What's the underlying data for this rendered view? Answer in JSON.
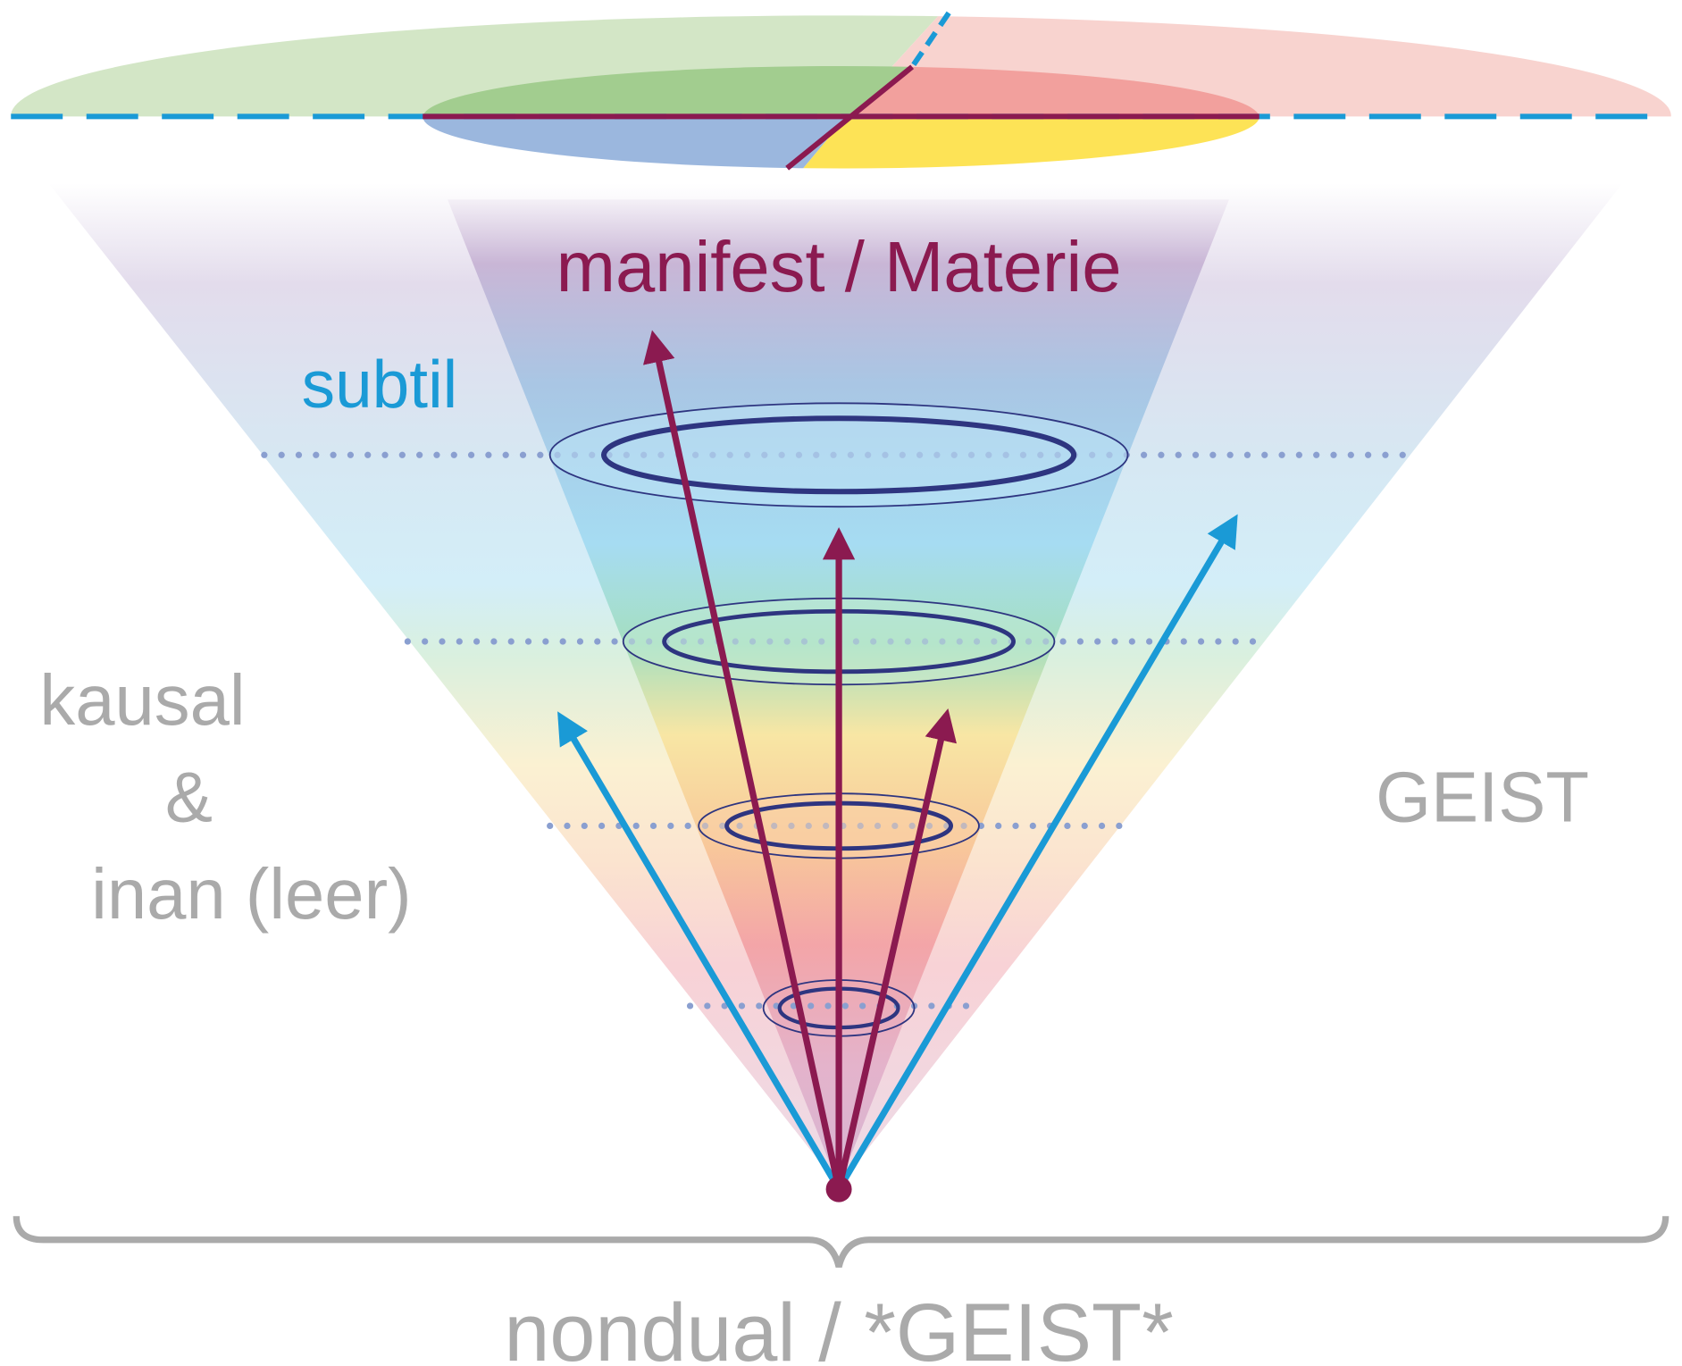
{
  "labels": {
    "manifest": "manifest / Materie",
    "subtil": "subtil",
    "kausal": [
      "kausal",
      "&",
      "inan (leer)"
    ],
    "geist": "GEIST",
    "nondual": "nondual / *GEIST*"
  }
}
